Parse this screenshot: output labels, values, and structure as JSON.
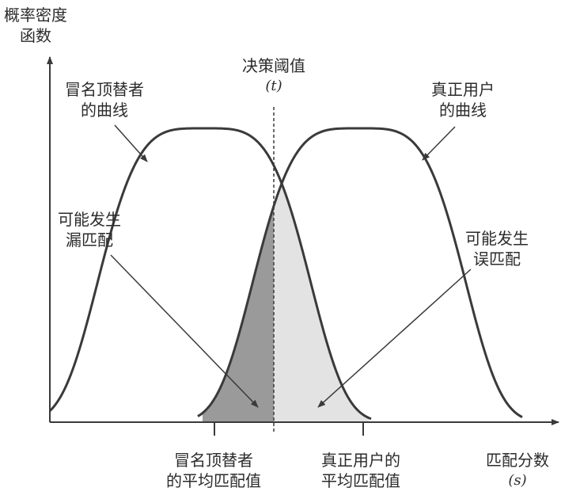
{
  "axis": {
    "y_label": [
      "概率密度",
      "函数"
    ],
    "x_label": [
      "匹配分数",
      "(s)"
    ]
  },
  "threshold": {
    "label": "决策阈值",
    "symbol": "(t)"
  },
  "curves": {
    "impostor": [
      "冒名顶替者",
      "的曲线"
    ],
    "genuine": [
      "真正用户",
      "的曲线"
    ]
  },
  "regions": {
    "false_reject": [
      "可能发生",
      "漏匹配"
    ],
    "false_accept": [
      "可能发生",
      "误匹配"
    ]
  },
  "means": {
    "impostor": [
      "冒名顶替者",
      "的平均匹配值"
    ],
    "genuine": [
      "真正用户的",
      "平均匹配值"
    ]
  },
  "colors": {
    "line": "#3a3a3a",
    "false_reject_fill": "#9a9a9a",
    "false_accept_fill": "#e3e3e3",
    "background": "#ffffff"
  }
}
